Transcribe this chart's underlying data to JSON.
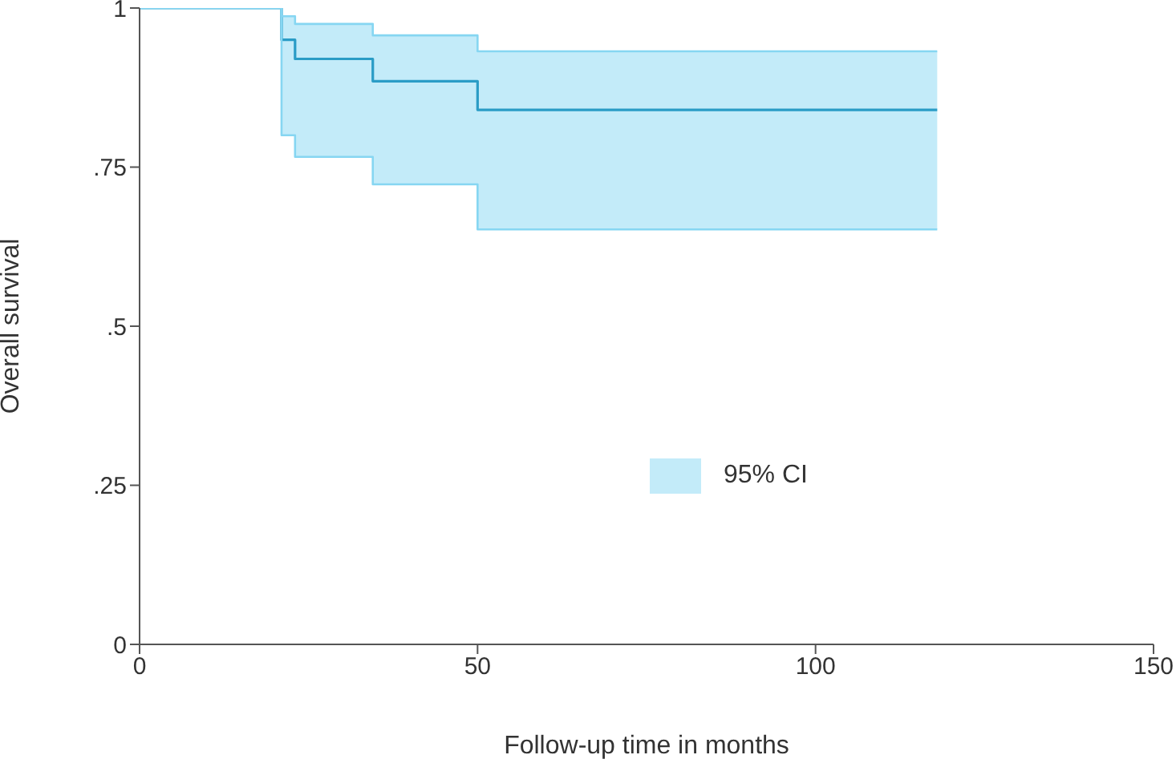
{
  "chart_data": {
    "type": "step",
    "xlabel": "Follow-up time in months",
    "ylabel": "Overall survival",
    "x": [
      0,
      21,
      23,
      34.5,
      50,
      118
    ],
    "xlim": [
      0,
      150
    ],
    "xticks": [
      0,
      50,
      100,
      150
    ],
    "ylim": [
      0,
      1
    ],
    "yticks": [
      0,
      {
        "value": 0.25,
        "label": ".25"
      },
      {
        "value": 0.5,
        "label": ".5"
      },
      {
        "value": 0.75,
        "label": ".75"
      },
      1
    ],
    "series": [
      {
        "color": "#2a9cc6",
        "values": [
          1,
          0.95,
          0.92,
          0.885,
          0.84,
          0.84
        ],
        "lower": [
          1,
          0.8,
          0.766,
          0.723,
          0.652,
          0.652
        ],
        "upper": [
          1,
          0.987,
          0.975,
          0.957,
          0.932,
          0.932
        ]
      },
      {
        "color": "#86d6f2",
        "values": [
          1,
          0.987,
          0.975,
          0.957,
          0.932,
          0.932
        ]
      },
      {
        "color": "#86d6f2",
        "values": [
          1,
          0.8,
          0.766,
          0.723,
          0.652,
          0.652
        ]
      }
    ],
    "annotations": [
      "95% CI"
    ],
    "grid": false
  }
}
